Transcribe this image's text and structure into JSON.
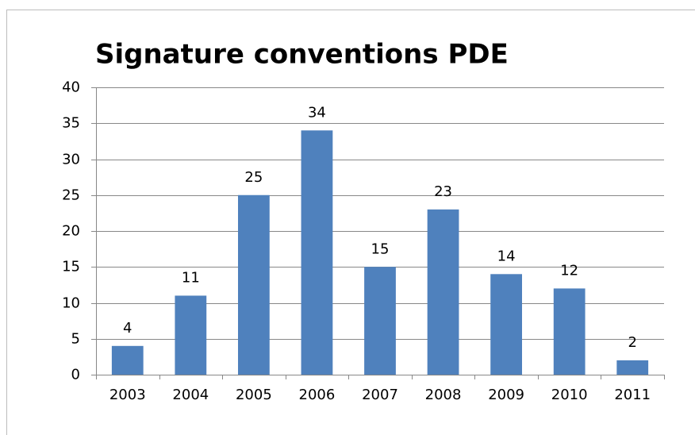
{
  "chart_data": {
    "type": "bar",
    "title": "Signature conventions PDE",
    "categories": [
      "2003",
      "2004",
      "2005",
      "2006",
      "2007",
      "2008",
      "2009",
      "2010",
      "2011"
    ],
    "values": [
      4,
      11,
      25,
      34,
      15,
      23,
      14,
      12,
      2
    ],
    "color": "#4f81bd",
    "ylim": [
      0,
      40
    ],
    "yticks": [
      0,
      5,
      10,
      15,
      20,
      25,
      30,
      35,
      40
    ],
    "grid": true
  }
}
